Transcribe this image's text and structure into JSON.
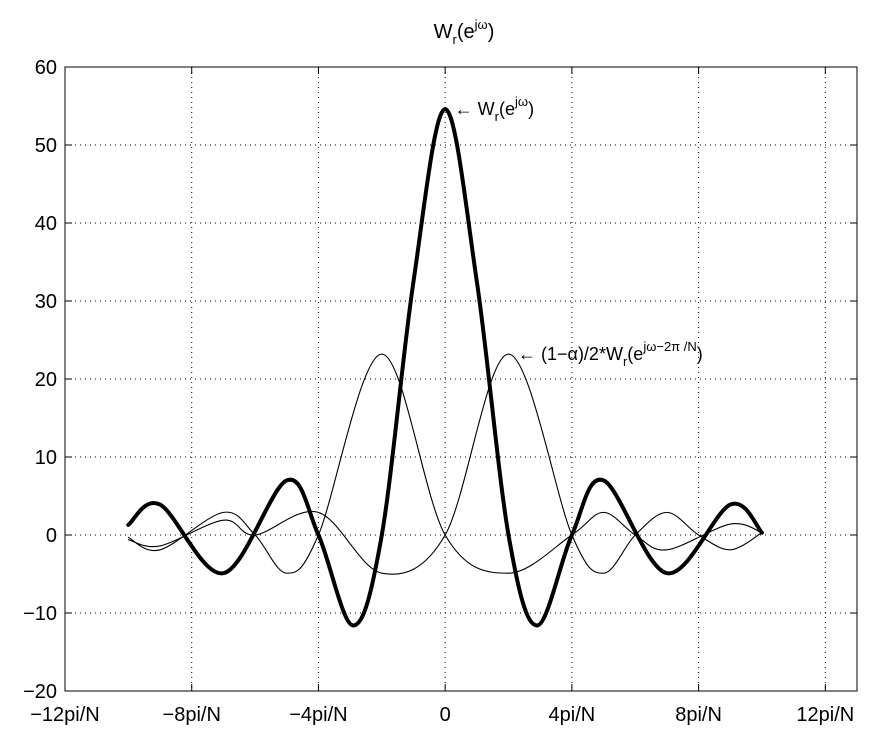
{
  "chart_data": {
    "type": "line",
    "title": "W_r(e^jω)",
    "xlabel": "",
    "ylabel": "",
    "xlim": [
      -12,
      13
    ],
    "ylim": [
      -20,
      60
    ],
    "x_units": "pi/N",
    "grid": true,
    "x_ticks": [
      -12,
      -8,
      -4,
      0,
      4,
      8,
      12
    ],
    "x_tick_labels": [
      "−12pi/N",
      "−8pi/N",
      "−4pi/N",
      "0",
      "4pi/N",
      "8pi/N",
      "12pi/N"
    ],
    "y_ticks": [
      -20,
      -10,
      0,
      10,
      20,
      30,
      40,
      50,
      60
    ],
    "y_tick_labels": [
      "−20",
      "−10",
      "0",
      "10",
      "20",
      "30",
      "40",
      "50",
      "60"
    ],
    "series": [
      {
        "style": "thick",
        "x": [
          -10,
          -9,
          -7,
          -5,
          -4,
          -2.9,
          -2,
          -1,
          0,
          1,
          2,
          2.9,
          4,
          5,
          7,
          9,
          10
        ],
        "y": [
          1.3,
          3.9,
          -4.9,
          7.0,
          0,
          -11.6,
          0,
          32.5,
          54.6,
          32.5,
          0,
          -11.6,
          0,
          7.0,
          -4.9,
          3.9,
          0.3
        ]
      },
      {
        "style": "thin",
        "x": [
          -10,
          -9,
          -7,
          -6,
          -5,
          -4,
          -2,
          0,
          2,
          4,
          5,
          6,
          7,
          9,
          10
        ],
        "y": [
          -0.3,
          -1.9,
          2.9,
          0,
          -4.9,
          0,
          23.2,
          0,
          -4.9,
          0,
          2.9,
          0,
          -1.9,
          1.4,
          0.3
        ]
      },
      {
        "style": "thin",
        "x": [
          -10,
          -9,
          -7,
          -6,
          -4,
          -2,
          0,
          2,
          4,
          5,
          6,
          7,
          8,
          9,
          10
        ],
        "y": [
          -0.6,
          -1.4,
          1.9,
          0,
          2.9,
          -4.9,
          0,
          23.2,
          0,
          -4.9,
          0,
          2.9,
          0,
          -1.9,
          0.3
        ]
      }
    ],
    "annotations": [
      {
        "text": "← W_r(e^jω)",
        "x": 0.3,
        "y": 54.6
      },
      {
        "text": "← (1−α)/2*W_r(e^jω−2π /N)",
        "x": 2.3,
        "y": 23.2
      }
    ]
  },
  "labels": {
    "title_base": "W",
    "title_sub": "r",
    "title_paren_open": "(e",
    "title_sup": "jω",
    "title_paren_close": ")",
    "annot1_prefix": "← W",
    "annot1_sub": "r",
    "annot1_paren": "(e",
    "annot1_sup": "jω",
    "annot1_close": ")",
    "annot2_prefix": "← (1−α)/2*W",
    "annot2_sub": "r",
    "annot2_paren": "(e",
    "annot2_sup": "jω−2π /N",
    "annot2_close": ")"
  }
}
